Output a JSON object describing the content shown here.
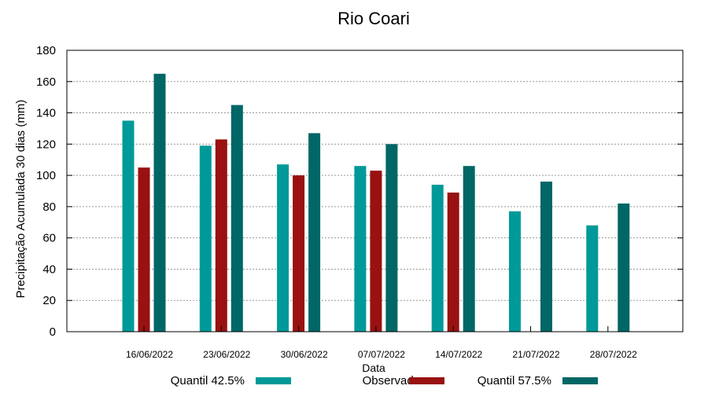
{
  "chart_data": {
    "type": "bar",
    "title": "Rio Coari",
    "xlabel": "Data",
    "ylabel": "Precipitação Acumulada 30 dias (mm)",
    "ylim": [
      0,
      180
    ],
    "yticks": [
      0,
      20,
      40,
      60,
      80,
      100,
      120,
      140,
      160,
      180
    ],
    "grid": true,
    "legend_position": "bottom",
    "categories": [
      "16/06/2022",
      "23/06/2022",
      "30/06/2022",
      "07/07/2022",
      "14/07/2022",
      "21/07/2022",
      "28/07/2022"
    ],
    "series": [
      {
        "name": "Quantil 42.5%",
        "color": "#009999",
        "values": [
          135,
          119,
          107,
          106,
          94,
          77,
          68
        ]
      },
      {
        "name": "Observado",
        "color": "#991111",
        "values": [
          105,
          123,
          100,
          103,
          89,
          null,
          null
        ]
      },
      {
        "name": "Quantil 57.5%",
        "color": "#006666",
        "values": [
          165,
          145,
          127,
          120,
          106,
          96,
          82
        ]
      }
    ]
  }
}
